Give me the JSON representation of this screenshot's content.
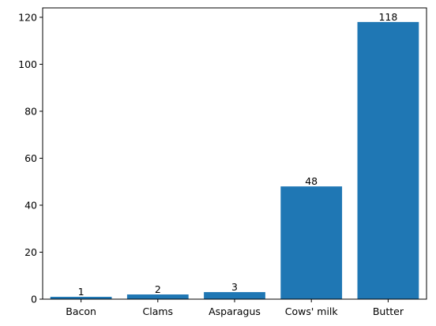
{
  "chart_data": {
    "type": "bar",
    "categories": [
      "Bacon",
      "Clams",
      "Asparagus",
      "Cows' milk",
      "Butter"
    ],
    "values": [
      1,
      2,
      3,
      48,
      118
    ],
    "data_labels": [
      "1",
      "2",
      "3",
      "48",
      "118"
    ],
    "title": "",
    "xlabel": "",
    "ylabel": "",
    "ylim": [
      0,
      124
    ],
    "yticks": [
      0,
      20,
      40,
      60,
      80,
      100,
      120
    ],
    "ytick_labels": [
      "0",
      "20",
      "40",
      "60",
      "80",
      "100",
      "120"
    ],
    "bar_color": "#1f77b4",
    "grid": false,
    "legend": "none"
  }
}
